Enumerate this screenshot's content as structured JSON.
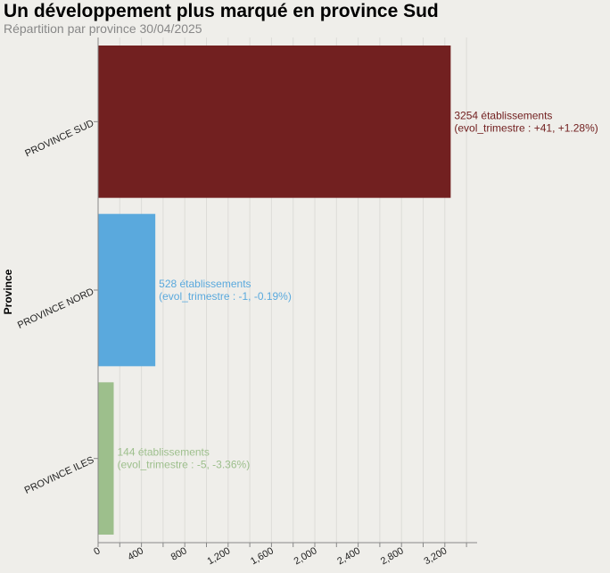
{
  "chart_data": {
    "type": "bar",
    "orientation": "horizontal",
    "title": "Un développement plus marqué en province Sud",
    "subtitle": "Répartition par province 30/04/2025",
    "ylabel": "Province",
    "xlabel": "",
    "categories": [
      "PROVINCE SUD",
      "PROVINCE NORD",
      "PROVINCE ILES"
    ],
    "values": [
      3254,
      528,
      144
    ],
    "colors": [
      "#722020",
      "#5aa9dd",
      "#9dbf8c"
    ],
    "data_labels": [
      [
        "3254 établissements",
        "(evol_trimestre : +41, +1.28%)"
      ],
      [
        "528 établissements",
        "(evol_trimestre : -1, -0.19%)"
      ],
      [
        "144 établissements",
        "(evol_trimestre : -5, -3.36%)"
      ]
    ],
    "x_ticks": [
      "0",
      "400",
      "800",
      "1,200",
      "1,600",
      "2,000",
      "2,400",
      "2,800",
      "3,200"
    ],
    "x_tick_values": [
      0,
      400,
      800,
      1200,
      1600,
      2000,
      2400,
      2800,
      3200
    ],
    "xlim": [
      0,
      3500
    ],
    "x_minor_step": 200,
    "grid": true,
    "legend": "none"
  }
}
